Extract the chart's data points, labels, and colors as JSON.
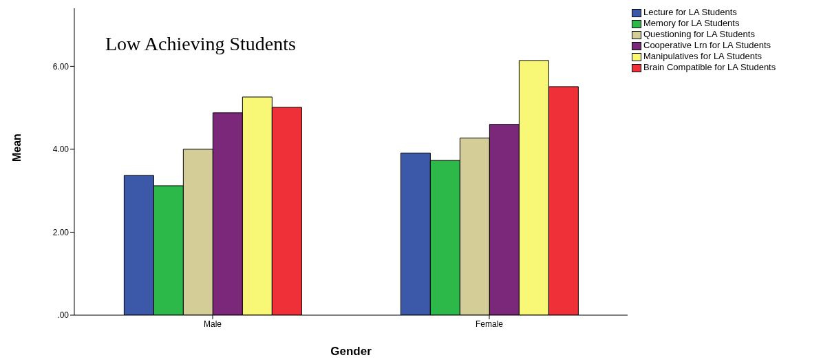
{
  "chart_data": {
    "type": "bar",
    "title": "Low Achieving Students",
    "xlabel": "Gender",
    "ylabel": "Mean",
    "categories": [
      "Male",
      "Female"
    ],
    "series": [
      {
        "name": "Lecture for LA Students",
        "color": "#3c58a8",
        "values": [
          3.37,
          3.91
        ]
      },
      {
        "name": "Memory for LA Students",
        "color": "#2db84a",
        "values": [
          3.12,
          3.73
        ]
      },
      {
        "name": "Questioning for LA Students",
        "color": "#d4cd98",
        "values": [
          4.0,
          4.27
        ]
      },
      {
        "name": "Cooperative Lrn for LA Students",
        "color": "#7b287b",
        "values": [
          4.88,
          4.6
        ]
      },
      {
        "name": "Manipulatives for LA Students",
        "color": "#f8f776",
        "values": [
          5.26,
          6.14
        ]
      },
      {
        "name": "Brain Compatible for LA Students",
        "color": "#ef3038",
        "values": [
          5.01,
          5.51
        ]
      }
    ],
    "ylim": [
      0,
      7.4
    ],
    "yticks": [
      {
        "value": 0,
        "label": ".00"
      },
      {
        "value": 2,
        "label": "2.00"
      },
      {
        "value": 4,
        "label": "4.00"
      },
      {
        "value": 6,
        "label": "6.00"
      }
    ],
    "grid": false,
    "legend": "top right"
  }
}
